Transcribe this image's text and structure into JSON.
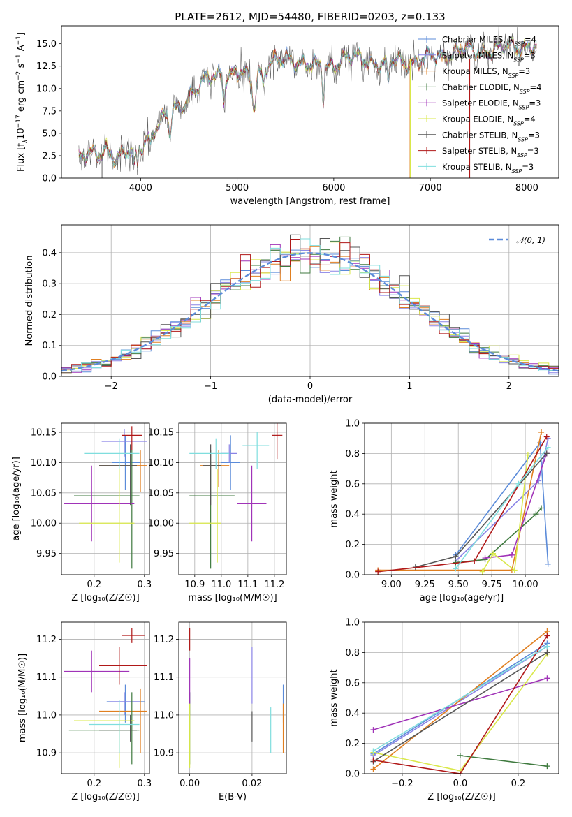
{
  "figure_title": "PLATE=2612, MJD=54480, FIBERID=0203, z=0.133",
  "colors": {
    "Chabrier MILES": "#5b8bd9",
    "Salpeter MILES": "#8a83e6",
    "Kroupa MILES": "#e07f20",
    "Chabrier ELODIE": "#3f7a3f",
    "Salpeter ELODIE": "#a033b8",
    "Kroupa ELODIE": "#d9e84a",
    "Chabrier STELIB": "#555555",
    "Salpeter STELIB": "#b01818",
    "Kroupa STELIB": "#7fdede",
    "normal": "#5b8bd9"
  },
  "chart_data": [
    {
      "id": "spectrum",
      "type": "line",
      "title": "PLATE=2612, MJD=54480, FIBERID=0203, z=0.133",
      "xlabel": "wavelength [Angstrom, rest frame]",
      "ylabel": "Flux [f_λ 10^-17 erg cm^-2 s^-1 A^-1]",
      "xlim": [
        3180,
        8330
      ],
      "ylim": [
        0,
        17
      ],
      "xticks": [
        "4000",
        "5000",
        "6000",
        "7000",
        "8000"
      ],
      "yticks": [
        "0.0",
        "2.5",
        "5.0",
        "7.5",
        "10.0",
        "12.5",
        "15.0"
      ],
      "grid": false,
      "legend_position": "right",
      "anchors": {
        "x": [
          3360,
          3450,
          3550,
          3650,
          3750,
          3850,
          3950,
          4050,
          4150,
          4250,
          4400,
          4550,
          4700,
          4850,
          5000,
          5150,
          5300,
          5500,
          5700,
          5900,
          6100,
          6300,
          6500,
          6700,
          6900,
          7100,
          7300,
          7500,
          7700,
          7900,
          8050
        ],
        "y": [
          2.6,
          2.9,
          2.2,
          3.2,
          2.5,
          3.0,
          2.5,
          4.2,
          5.8,
          6.8,
          7.8,
          10.0,
          11.0,
          11.6,
          11.8,
          11.0,
          12.8,
          13.2,
          13.0,
          12.0,
          13.5,
          13.2,
          12.8,
          13.0,
          13.2,
          13.6,
          14.3,
          14.1,
          14.4,
          14.8,
          14.6
        ]
      },
      "series": [
        {
          "name": "Chabrier MILES, N_SSP=4",
          "model": "Chabrier MILES",
          "nssp": "4"
        },
        {
          "name": "Salpeter MILES, N_SSP=3",
          "model": "Salpeter MILES",
          "nssp": "3"
        },
        {
          "name": "Kroupa MILES, N_SSP=3",
          "model": "Kroupa MILES",
          "nssp": "3"
        },
        {
          "name": "Chabrier ELODIE, N_SSP=4",
          "model": "Chabrier ELODIE",
          "nssp": "4"
        },
        {
          "name": "Salpeter ELODIE, N_SSP=3",
          "model": "Salpeter ELODIE",
          "nssp": "3"
        },
        {
          "name": "Kroupa ELODIE, N_SSP=4",
          "model": "Kroupa ELODIE",
          "nssp": "4"
        },
        {
          "name": "Chabrier STELIB, N_SSP=3",
          "model": "Chabrier STELIB",
          "nssp": "3"
        },
        {
          "name": "Salpeter STELIB, N_SSP=3",
          "model": "Salpeter STELIB",
          "nssp": "3"
        },
        {
          "name": "Kroupa STELIB, N_SSP=3",
          "model": "Kroupa STELIB",
          "nssp": "3"
        }
      ]
    },
    {
      "id": "residuals",
      "type": "line",
      "xlabel": "(data-model)/error",
      "ylabel": "Normed distribution",
      "xlim": [
        -2.5,
        2.5
      ],
      "ylim": [
        0,
        0.49
      ],
      "xticks": [
        "−2",
        "−1",
        "0",
        "1",
        "2"
      ],
      "yticks": [
        "0.0",
        "0.1",
        "0.2",
        "0.3",
        "0.4"
      ],
      "grid": true,
      "legend_position": "top-right",
      "legend": "𝒩(0, 1)",
      "bin_width": 0.1,
      "shape": "step histograms, one per model, around a standard normal curve",
      "model_order": [
        "Chabrier MILES",
        "Salpeter MILES",
        "Kroupa MILES",
        "Chabrier ELODIE",
        "Salpeter ELODIE",
        "Kroupa ELODIE",
        "Chabrier STELIB",
        "Salpeter STELIB",
        "Kroupa STELIB"
      ]
    },
    {
      "id": "age-vs-Z",
      "type": "scatter",
      "xlabel": "Z [log₁₀(Z/Z☉)]",
      "ylabel": "age [log₁₀(age/yr)]",
      "xlim": [
        0.135,
        0.31
      ],
      "ylim": [
        9.915,
        10.165
      ],
      "xticks": [
        "0.2",
        "0.3"
      ],
      "yticks": [
        "9.95",
        "10.00",
        "10.05",
        "10.10",
        "10.15"
      ],
      "grid": true,
      "points": [
        {
          "model": "Chabrier MILES",
          "x": 0.262,
          "y": 10.1,
          "xerr": [
            0.235,
            0.292
          ],
          "yerr": [
            10.055,
            10.145
          ]
        },
        {
          "model": "Salpeter MILES",
          "x": 0.26,
          "y": 10.135,
          "xerr": [
            0.215,
            0.305
          ],
          "yerr": [
            10.11,
            10.155
          ]
        },
        {
          "model": "Kroupa MILES",
          "x": 0.292,
          "y": 10.095,
          "xerr": [
            0.21,
            0.305
          ],
          "yerr": [
            10.052,
            10.12
          ]
        },
        {
          "model": "Chabrier ELODIE",
          "x": 0.275,
          "y": 10.045,
          "xerr": [
            0.16,
            0.29
          ],
          "yerr": [
            9.925,
            10.12
          ]
        },
        {
          "model": "Salpeter ELODIE",
          "x": 0.195,
          "y": 10.032,
          "xerr": [
            0.14,
            0.28
          ],
          "yerr": [
            9.97,
            10.095
          ]
        },
        {
          "model": "Kroupa ELODIE",
          "x": 0.25,
          "y": 10.0,
          "xerr": [
            0.17,
            0.28
          ],
          "yerr": [
            9.935,
            10.09
          ]
        },
        {
          "model": "Chabrier STELIB",
          "x": 0.272,
          "y": 10.095,
          "xerr": [
            0.21,
            0.285
          ],
          "yerr": [
            10.03,
            10.13
          ]
        },
        {
          "model": "Salpeter STELIB",
          "x": 0.275,
          "y": 10.145,
          "xerr": [
            0.255,
            0.295
          ],
          "yerr": [
            10.12,
            10.16
          ]
        },
        {
          "model": "Kroupa STELIB",
          "x": 0.25,
          "y": 10.115,
          "xerr": [
            0.18,
            0.29
          ],
          "yerr": [
            10.09,
            10.14
          ]
        }
      ]
    },
    {
      "id": "age-vs-mass",
      "type": "scatter",
      "xlabel": "mass [log₁₀(M/M☉)]",
      "ylabel": "",
      "xlim": [
        10.84,
        11.245
      ],
      "ylim": [
        9.915,
        10.165
      ],
      "xticks": [
        "10.9",
        "11.0",
        "11.1",
        "11.2"
      ],
      "yticks": [
        "9.95",
        "10.00",
        "10.05",
        "10.10",
        "10.15"
      ],
      "grid": true,
      "points": [
        {
          "model": "Chabrier MILES",
          "x": 11.035,
          "y": 10.1,
          "xerr": [
            11.0,
            11.07
          ],
          "yerr": [
            10.055,
            10.145
          ]
        },
        {
          "model": "Salpeter MILES",
          "x": 11.03,
          "y": 10.115,
          "xerr": [
            11.0,
            11.06
          ],
          "yerr": [
            10.1,
            10.13
          ]
        },
        {
          "model": "Kroupa MILES",
          "x": 10.99,
          "y": 10.095,
          "xerr": [
            10.92,
            11.03
          ],
          "yerr": [
            10.06,
            10.12
          ]
        },
        {
          "model": "Chabrier ELODIE",
          "x": 10.96,
          "y": 10.045,
          "xerr": [
            10.88,
            11.05
          ],
          "yerr": [
            9.925,
            10.12
          ]
        },
        {
          "model": "Salpeter ELODIE",
          "x": 11.115,
          "y": 10.032,
          "xerr": [
            11.06,
            11.17
          ],
          "yerr": [
            9.97,
            10.095
          ]
        },
        {
          "model": "Kroupa ELODIE",
          "x": 10.985,
          "y": 10.0,
          "xerr": [
            10.88,
            11.0
          ],
          "yerr": [
            9.935,
            10.09
          ]
        },
        {
          "model": "Chabrier STELIB",
          "x": 10.96,
          "y": 10.095,
          "xerr": [
            10.93,
            11.0
          ],
          "yerr": [
            10.03,
            10.13
          ]
        },
        {
          "model": "Salpeter STELIB",
          "x": 11.21,
          "y": 10.145,
          "xerr": [
            11.19,
            11.23
          ],
          "yerr": [
            10.105,
            10.165
          ]
        },
        {
          "model": "Kroupa STELIB",
          "x": 11.135,
          "y": 10.128,
          "xerr": [
            11.08,
            11.18
          ],
          "yerr": [
            10.09,
            10.15
          ]
        },
        {
          "model": "Kroupa STELIB",
          "x": 10.98,
          "y": 10.115,
          "xerr": [
            10.88,
            11.03
          ],
          "yerr": [
            10.09,
            10.14
          ]
        }
      ]
    },
    {
      "id": "sfh-age",
      "type": "line",
      "xlabel": "age [log₁₀(age/yr)]",
      "ylabel": "mass weight",
      "xlim": [
        8.8,
        10.25
      ],
      "ylim": [
        0,
        1.0
      ],
      "xticks": [
        "9.00",
        "9.25",
        "9.50",
        "9.75",
        "10.00"
      ],
      "yticks": [
        "0.0",
        "0.2",
        "0.4",
        "0.6",
        "0.8",
        "1.0"
      ],
      "grid": true,
      "series": [
        {
          "model": "Chabrier MILES",
          "x": [
            9.48,
            10.11,
            10.17
          ],
          "y": [
            0.13,
            0.87,
            0.07
          ]
        },
        {
          "model": "Salpeter MILES",
          "x": [
            9.48,
            10.1,
            10.17
          ],
          "y": [
            0.09,
            0.62,
            0.9
          ]
        },
        {
          "model": "Kroupa MILES",
          "x": [
            8.9,
            9.9,
            10.12
          ],
          "y": [
            0.03,
            0.03,
            0.94
          ]
        },
        {
          "model": "Chabrier ELODIE",
          "x": [
            9.48,
            9.7,
            10.08,
            10.12
          ],
          "y": [
            0.08,
            0.1,
            0.4,
            0.44
          ]
        },
        {
          "model": "Salpeter ELODIE",
          "x": [
            9.7,
            9.9,
            10.16
          ],
          "y": [
            0.11,
            0.13,
            0.8
          ]
        },
        {
          "model": "Kroupa ELODIE",
          "x": [
            9.68,
            9.76,
            9.92,
            10.02
          ],
          "y": [
            0.02,
            0.14,
            0.03,
            0.79
          ]
        },
        {
          "model": "Chabrier STELIB",
          "x": [
            9.18,
            9.48,
            10.16
          ],
          "y": [
            0.05,
            0.12,
            0.8
          ]
        },
        {
          "model": "Salpeter STELIB",
          "x": [
            8.9,
            9.62,
            10.16
          ],
          "y": [
            0.02,
            0.09,
            0.91
          ]
        },
        {
          "model": "Kroupa STELIB",
          "x": [
            9.48,
            9.95,
            10.17
          ],
          "y": [
            0.04,
            0.6,
            0.84
          ]
        }
      ]
    },
    {
      "id": "mass-vs-Z",
      "type": "scatter",
      "xlabel": "Z [log₁₀(Z/Z☉)]",
      "ylabel": "mass [log₁₀(M/M☉)]",
      "xlim": [
        0.135,
        0.31
      ],
      "ylim": [
        10.845,
        11.245
      ],
      "xticks": [
        "0.2",
        "0.3"
      ],
      "yticks": [
        "10.9",
        "11.0",
        "11.1",
        "11.2"
      ],
      "grid": true,
      "points": [
        {
          "model": "Chabrier MILES",
          "x": 0.262,
          "y": 11.035,
          "xerr": [
            0.225,
            0.3
          ],
          "yerr": [
            10.98,
            11.08
          ]
        },
        {
          "model": "Salpeter MILES",
          "x": 0.26,
          "y": 11.035,
          "xerr": [
            0.23,
            0.29
          ],
          "yerr": [
            11.0,
            11.06
          ]
        },
        {
          "model": "Kroupa MILES",
          "x": 0.292,
          "y": 11.01,
          "xerr": [
            0.21,
            0.305
          ],
          "yerr": [
            10.9,
            11.07
          ]
        },
        {
          "model": "Chabrier ELODIE",
          "x": 0.275,
          "y": 10.96,
          "xerr": [
            0.15,
            0.29
          ],
          "yerr": [
            10.87,
            11.06
          ]
        },
        {
          "model": "Salpeter ELODIE",
          "x": 0.195,
          "y": 11.115,
          "xerr": [
            0.14,
            0.27
          ],
          "yerr": [
            11.06,
            11.17
          ]
        },
        {
          "model": "Kroupa ELODIE",
          "x": 0.25,
          "y": 10.985,
          "xerr": [
            0.16,
            0.28
          ],
          "yerr": [
            10.86,
            11.0
          ]
        },
        {
          "model": "Chabrier STELIB",
          "x": 0.272,
          "y": 10.96,
          "xerr": [
            0.21,
            0.285
          ],
          "yerr": [
            10.93,
            11.0
          ]
        },
        {
          "model": "Salpeter STELIB",
          "x": 0.275,
          "y": 11.21,
          "xerr": [
            0.255,
            0.3
          ],
          "yerr": [
            11.19,
            11.23
          ]
        },
        {
          "model": "Kroupa STELIB",
          "x": 0.25,
          "y": 10.975,
          "xerr": [
            0.19,
            0.29
          ],
          "yerr": [
            10.9,
            11.04
          ]
        },
        {
          "model": "Salpeter STELIB",
          "x": 0.25,
          "y": 11.13,
          "xerr": [
            0.21,
            0.305
          ],
          "yerr": [
            11.08,
            11.18
          ]
        }
      ]
    },
    {
      "id": "mass-vs-EBV",
      "type": "scatter",
      "xlabel": "E(B-V)",
      "ylabel": "",
      "xlim": [
        -0.0035,
        0.031
      ],
      "ylim": [
        10.845,
        11.245
      ],
      "xticks": [
        "0.00",
        "0.02"
      ],
      "yticks": [
        "10.9",
        "11.0",
        "11.1",
        "11.2"
      ],
      "grid": true,
      "points": [
        {
          "model": "Chabrier MILES",
          "x": 0.03,
          "y": 11.035,
          "yerr": [
            10.98,
            11.08
          ]
        },
        {
          "model": "Salpeter MILES",
          "x": 0.0,
          "y": 11.035,
          "yerr": [
            11.0,
            11.06
          ]
        },
        {
          "model": "Kroupa MILES",
          "x": 0.03,
          "y": 11.0,
          "yerr": [
            10.9,
            11.03
          ]
        },
        {
          "model": "Chabrier ELODIE",
          "x": 0.0,
          "y": 10.96,
          "yerr": [
            10.87,
            11.06
          ]
        },
        {
          "model": "Salpeter ELODIE",
          "x": 0.0,
          "y": 11.1,
          "yerr": [
            11.03,
            11.15
          ]
        },
        {
          "model": "Kroupa ELODIE",
          "x": 0.0,
          "y": 10.96,
          "yerr": [
            10.86,
            11.03
          ]
        },
        {
          "model": "Chabrier STELIB",
          "x": 0.02,
          "y": 10.96,
          "yerr": [
            10.93,
            11.01
          ]
        },
        {
          "model": "Salpeter STELIB",
          "x": 0.0,
          "y": 11.2,
          "yerr": [
            11.17,
            11.23
          ]
        },
        {
          "model": "Kroupa STELIB",
          "x": 0.026,
          "y": 10.96,
          "yerr": [
            10.9,
            11.02
          ]
        },
        {
          "model": "Salpeter MILES",
          "x": 0.02,
          "y": 11.1,
          "yerr": [
            11.03,
            11.18
          ]
        }
      ]
    },
    {
      "id": "sfh-Z",
      "type": "line",
      "xlabel": "Z [log₁₀(Z/Z☉)]",
      "ylabel": "mass weight",
      "xlim": [
        -0.33,
        0.34
      ],
      "ylim": [
        0,
        1.0
      ],
      "xticks": [
        "−0.2",
        "0.0",
        "0.2"
      ],
      "yticks": [
        "0.0",
        "0.2",
        "0.4",
        "0.6",
        "0.8",
        "1.0"
      ],
      "grid": true,
      "series": [
        {
          "model": "Chabrier MILES",
          "x": [
            -0.3,
            0.3
          ],
          "y": [
            0.13,
            0.86
          ]
        },
        {
          "model": "Salpeter MILES",
          "x": [
            -0.3,
            0.3
          ],
          "y": [
            0.12,
            0.84
          ]
        },
        {
          "model": "Kroupa MILES",
          "x": [
            -0.3,
            0.3
          ],
          "y": [
            0.03,
            0.94
          ]
        },
        {
          "model": "Chabrier ELODIE",
          "x": [
            0.0,
            0.3
          ],
          "y": [
            0.12,
            0.05
          ]
        },
        {
          "model": "Salpeter ELODIE",
          "x": [
            -0.3,
            0.3
          ],
          "y": [
            0.29,
            0.63
          ]
        },
        {
          "model": "Kroupa ELODIE",
          "x": [
            -0.3,
            0.0,
            0.3
          ],
          "y": [
            0.14,
            0.02,
            0.79
          ]
        },
        {
          "model": "Chabrier STELIB",
          "x": [
            -0.3,
            0.3
          ],
          "y": [
            0.08,
            0.8
          ]
        },
        {
          "model": "Salpeter STELIB",
          "x": [
            -0.3,
            0.0,
            0.3
          ],
          "y": [
            0.09,
            0.0,
            0.91
          ]
        },
        {
          "model": "Kroupa STELIB",
          "x": [
            -0.3,
            0.3
          ],
          "y": [
            0.15,
            0.84
          ]
        }
      ]
    }
  ]
}
